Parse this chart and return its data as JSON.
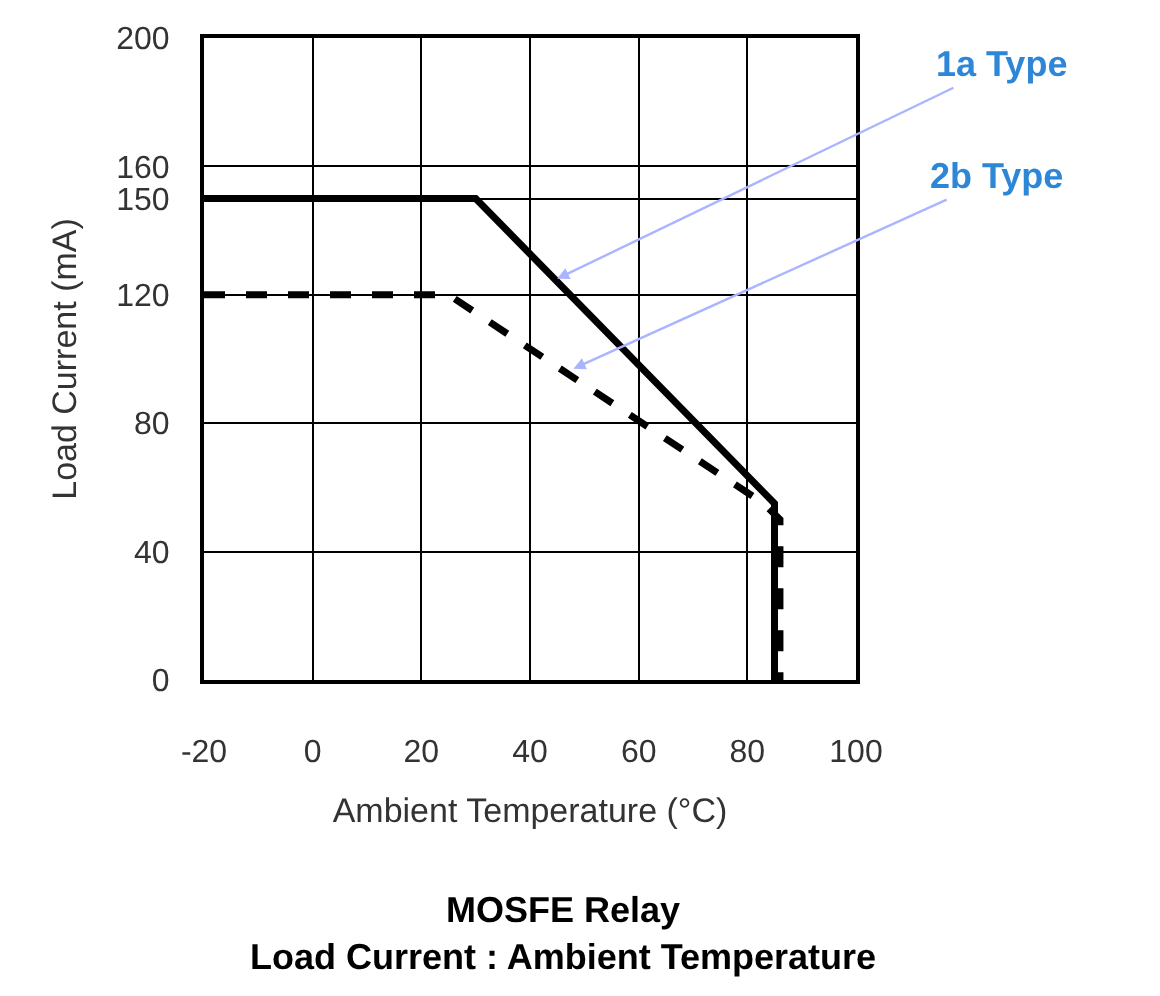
{
  "chart_data": {
    "type": "line",
    "title": "MOSFE Relay\nLoad Current : Ambient Temperature",
    "xlabel": "Ambient Temperature (°C)",
    "ylabel": "Load Current (mA)",
    "xlim": [
      -20,
      100
    ],
    "xticks": [
      -20,
      0,
      20,
      40,
      60,
      80,
      100
    ],
    "ylim": [
      0,
      200
    ],
    "yticks": [
      0,
      40,
      80,
      120,
      150,
      160,
      200
    ],
    "grid": true,
    "marker": "none",
    "series": [
      {
        "color": "#000000",
        "line_style": "solid",
        "x": [
          -20,
          30,
          85,
          85
        ],
        "values": [
          150,
          150,
          55,
          0
        ]
      },
      {
        "color": "#000000",
        "line_style": "dashed",
        "x": [
          -20,
          25,
          83,
          86,
          86
        ],
        "values": [
          120,
          120,
          55,
          50,
          0
        ]
      }
    ],
    "annotations": [
      {
        "text": "1a Type",
        "x": 45,
        "y": 125
      },
      {
        "text": "2b Type",
        "x": 48,
        "y": 97
      }
    ]
  }
}
